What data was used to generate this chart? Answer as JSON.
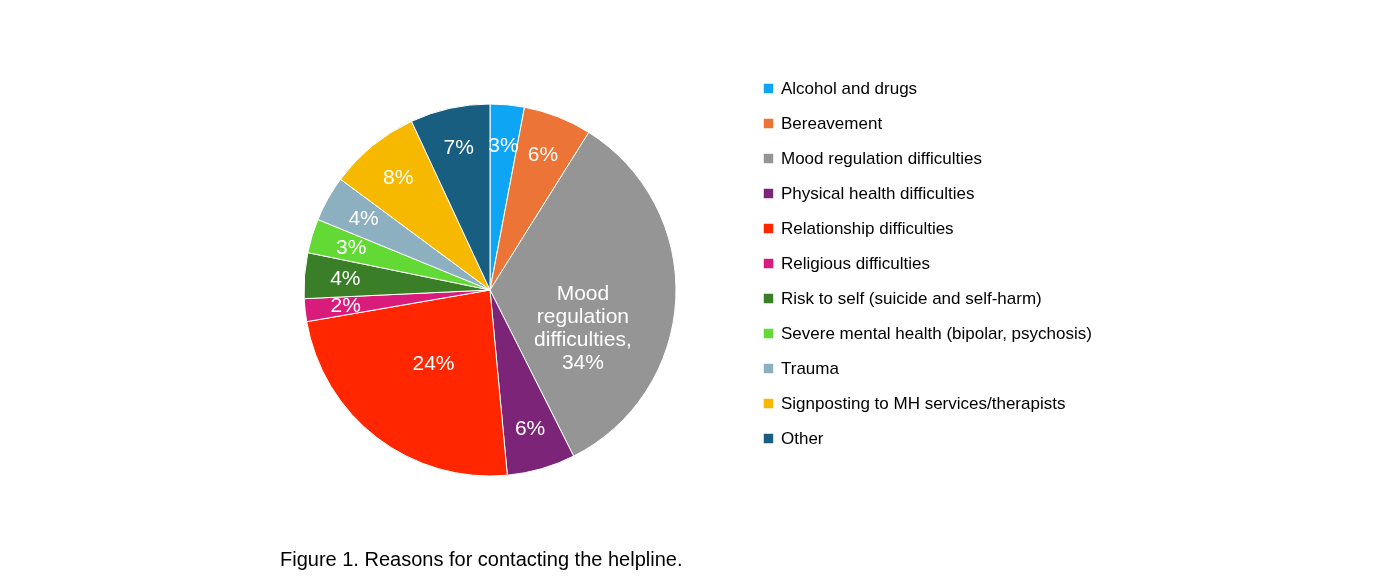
{
  "chart_data": {
    "type": "pie",
    "title": "Figure 1. Reasons for contacting the helpline.",
    "categories": [
      "Alcohol and drugs",
      "Bereavement",
      "Mood regulation difficulties",
      "Physical health difficulties",
      "Relationship difficulties",
      "Religious difficulties",
      "Risk to self (suicide and self-harm)",
      "Severe mental health (bipolar, psychosis)",
      "Trauma",
      "Signposting to MH services/therapists",
      "Other"
    ],
    "values": [
      3,
      6,
      34,
      6,
      24,
      2,
      4,
      3,
      4,
      8,
      7
    ],
    "colors": [
      "#0ea5f5",
      "#ec7436",
      "#959595",
      "#7c2478",
      "#ff2600",
      "#d91c7c",
      "#3a7f27",
      "#62d934",
      "#8db0c0",
      "#f6b900",
      "#185e80"
    ],
    "value_labels": [
      "3%",
      "6%",
      "Mood regulation difficulties, 34%",
      "6%",
      "24%",
      "2%",
      "4%",
      "3%",
      "4%",
      "8%",
      "7%"
    ],
    "legend": "right"
  }
}
